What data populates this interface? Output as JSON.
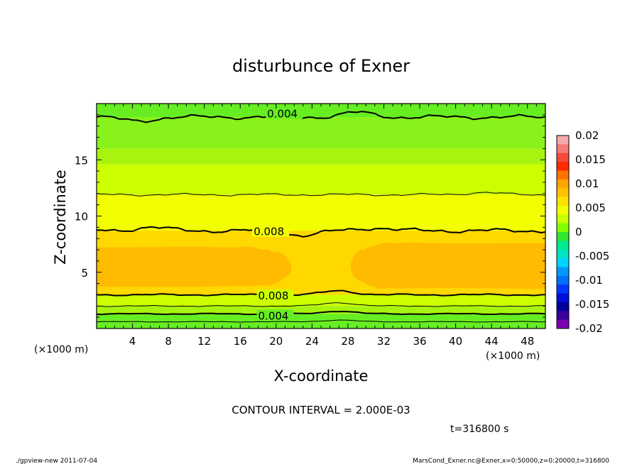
{
  "chart_data": {
    "type": "heatmap",
    "title": "disturbunce of Exner",
    "xlabel": "X-coordinate",
    "ylabel": "Z-coordinate",
    "x_unit_left": "(×1000 m)",
    "x_unit_right": "(×1000 m)",
    "xlim": [
      0,
      50
    ],
    "ylim": [
      0,
      20
    ],
    "xticks": [
      4,
      8,
      12,
      16,
      20,
      24,
      28,
      32,
      36,
      40,
      44,
      48
    ],
    "yticks": [
      5,
      10,
      15
    ],
    "contour_interval_text": "CONTOUR INTERVAL = 2.000E-03",
    "time_text": "t=316800 s",
    "colorbar": {
      "labels": [
        "0.02",
        "0.015",
        "0.01",
        "0.005",
        "0",
        "-0.005",
        "-0.01",
        "-0.015",
        "-0.02"
      ],
      "values": [
        0.02,
        0.015,
        0.01,
        0.005,
        0,
        -0.005,
        -0.01,
        -0.015,
        -0.02
      ],
      "colors": [
        "#f7a9a9",
        "#f77a7a",
        "#f54a3c",
        "#ff2a00",
        "#ff7200",
        "#ffa500",
        "#ffc200",
        "#ffe000",
        "#f2ff00",
        "#c9ff00",
        "#80ff00",
        "#33e633",
        "#00e98c",
        "#00e4c4",
        "#00d3ff",
        "#0099ff",
        "#0070ff",
        "#0038ff",
        "#0010d8",
        "#00009a",
        "#3a0099",
        "#7a00b0"
      ]
    },
    "contour_labels": [
      {
        "text": "0.004",
        "x": 19,
        "z": 19.1
      },
      {
        "text": "0.008",
        "x": 17.5,
        "z": 8.6
      },
      {
        "text": "0.008",
        "x": 18,
        "z": 2.9
      },
      {
        "text": "0.004",
        "x": 18,
        "z": 1.1
      }
    ],
    "bands": [
      {
        "z0": 18.8,
        "z1": 20,
        "value": 0.003,
        "color": "#66ee22"
      },
      {
        "z0": 16.0,
        "z1": 18.8,
        "value": 0.005,
        "color": "#88f21a"
      },
      {
        "z0": 14.6,
        "z1": 16.0,
        "value": 0.006,
        "color": "#a8f40e"
      },
      {
        "z0": 11.9,
        "z1": 14.6,
        "value": 0.007,
        "color": "#ccff00"
      },
      {
        "z0": 8.7,
        "z1": 11.9,
        "value": 0.008,
        "color": "#f2ff00"
      },
      {
        "z0": 3.0,
        "z1": 8.7,
        "value": 0.009,
        "color": "#ffd800"
      },
      {
        "z0": 2.0,
        "z1": 3.0,
        "value": 0.007,
        "color": "#ccff00"
      },
      {
        "z0": 1.3,
        "z1": 2.0,
        "value": 0.005,
        "color": "#a8f40e"
      },
      {
        "z0": 0,
        "z1": 1.3,
        "value": 0.003,
        "color": "#66ee22"
      }
    ],
    "blobs": [
      {
        "x0": 0,
        "x1": 21.7,
        "z0": 3.7,
        "z1": 7.2,
        "value": 0.01,
        "color": "#ffbb00"
      },
      {
        "x0": 28.3,
        "x1": 50,
        "z0": 3.5,
        "z1": 7.6,
        "value": 0.01,
        "color": "#ffbb00"
      }
    ]
  },
  "footer": {
    "left": "./gpview-new   2011-07-04",
    "right": "MarsCond_Exner.nc@Exner,x=0:50000,z=0:20000,t=316800"
  }
}
